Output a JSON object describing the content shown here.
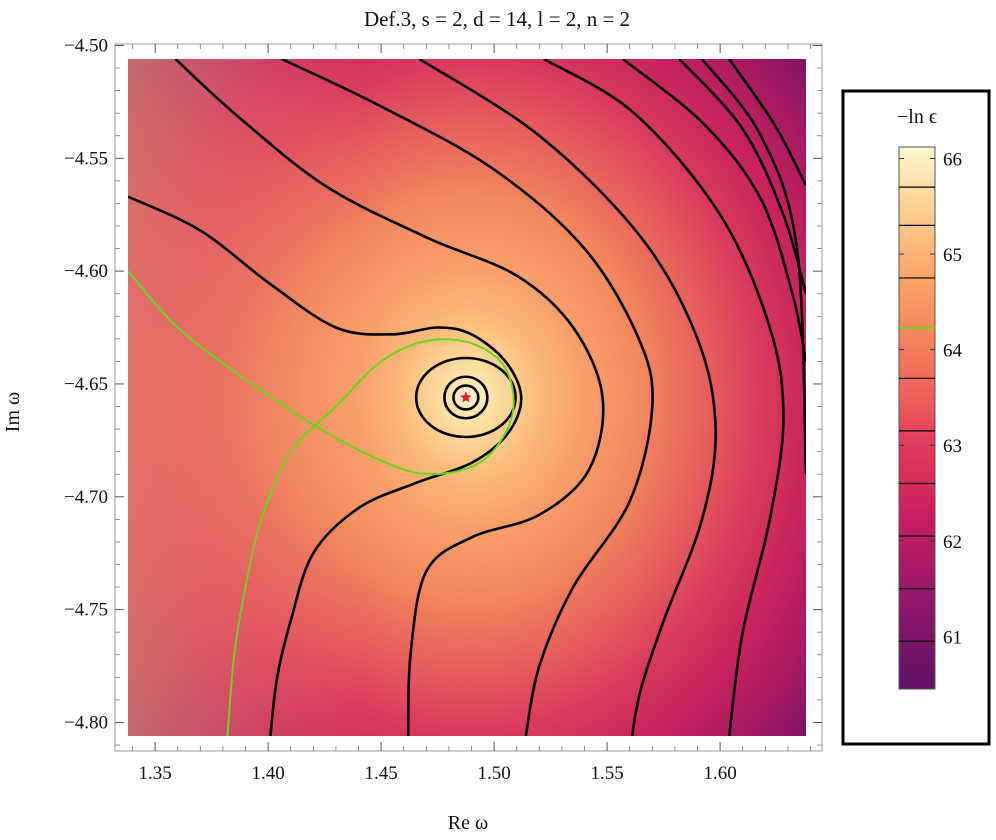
{
  "chart_data": {
    "type": "heatmap",
    "title": "Def.3, s = 2, d = 14, l = 2, n = 2",
    "xlabel": "Re ω",
    "ylabel": "Im ω",
    "xlim": [
      1.338,
      1.638
    ],
    "ylim": [
      -4.806,
      -4.506
    ],
    "frame_xlim": [
      1.332,
      1.645
    ],
    "frame_ylim": [
      -4.812,
      -4.5
    ],
    "x_ticks": [
      1.35,
      1.4,
      1.45,
      1.5,
      1.55,
      1.6
    ],
    "x_tick_labels": [
      "1.35",
      "1.40",
      "1.45",
      "1.50",
      "1.55",
      "1.60"
    ],
    "y_ticks": [
      -4.5,
      -4.55,
      -4.6,
      -4.65,
      -4.7,
      -4.75,
      -4.8
    ],
    "y_tick_labels": [
      "−4.50",
      "−4.55",
      "−4.60",
      "−4.65",
      "−4.70",
      "−4.75",
      "−4.80"
    ],
    "colormap": [
      "#5e1266",
      "#b81a5e",
      "#e6325c",
      "#f6705a",
      "#fbaa68",
      "#fde0a0",
      "#fef8cc"
    ],
    "contour_color": "#000000",
    "highlight_contour_color": "#6cd421",
    "highlight_level": 64.23,
    "minimum_marker": {
      "x": 1.4875,
      "y": -4.656,
      "color": "#ee1c1c",
      "shape": "star"
    },
    "contours": [
      {
        "type": "line",
        "points": [
          [
            1.338,
            -4.567
          ],
          [
            1.37,
            -4.582
          ],
          [
            1.4,
            -4.605
          ],
          [
            1.43,
            -4.625
          ],
          [
            1.455,
            -4.628
          ],
          [
            1.475,
            -4.625
          ],
          [
            1.49,
            -4.628
          ],
          [
            1.505,
            -4.64
          ],
          [
            1.512,
            -4.656
          ],
          [
            1.506,
            -4.672
          ],
          [
            1.49,
            -4.685
          ],
          [
            1.465,
            -4.694
          ],
          [
            1.44,
            -4.705
          ],
          [
            1.42,
            -4.725
          ],
          [
            1.41,
            -4.755
          ],
          [
            1.404,
            -4.78
          ],
          [
            1.401,
            -4.806
          ]
        ]
      },
      {
        "type": "line",
        "points": [
          [
            1.359,
            -4.506
          ],
          [
            1.385,
            -4.53
          ],
          [
            1.425,
            -4.562
          ],
          [
            1.47,
            -4.585
          ],
          [
            1.51,
            -4.602
          ],
          [
            1.535,
            -4.625
          ],
          [
            1.548,
            -4.656
          ],
          [
            1.542,
            -4.688
          ],
          [
            1.52,
            -4.708
          ],
          [
            1.49,
            -4.718
          ],
          [
            1.47,
            -4.733
          ],
          [
            1.463,
            -4.77
          ],
          [
            1.462,
            -4.806
          ]
        ]
      },
      {
        "type": "line",
        "points": [
          [
            1.406,
            -4.506
          ],
          [
            1.45,
            -4.527
          ],
          [
            1.5,
            -4.555
          ],
          [
            1.54,
            -4.59
          ],
          [
            1.564,
            -4.63
          ],
          [
            1.57,
            -4.66
          ],
          [
            1.56,
            -4.702
          ],
          [
            1.535,
            -4.74
          ],
          [
            1.52,
            -4.775
          ],
          [
            1.514,
            -4.806
          ]
        ]
      },
      {
        "type": "line",
        "points": [
          [
            1.467,
            -4.506
          ],
          [
            1.52,
            -4.54
          ],
          [
            1.565,
            -4.585
          ],
          [
            1.59,
            -4.63
          ],
          [
            1.598,
            -4.67
          ],
          [
            1.592,
            -4.71
          ],
          [
            1.575,
            -4.755
          ],
          [
            1.565,
            -4.785
          ],
          [
            1.561,
            -4.806
          ]
        ]
      },
      {
        "type": "line",
        "points": [
          [
            1.522,
            -4.506
          ],
          [
            1.562,
            -4.53
          ],
          [
            1.6,
            -4.575
          ],
          [
            1.622,
            -4.625
          ],
          [
            1.628,
            -4.665
          ],
          [
            1.622,
            -4.71
          ],
          [
            1.61,
            -4.76
          ],
          [
            1.604,
            -4.806
          ]
        ]
      },
      {
        "type": "line",
        "points": [
          [
            1.557,
            -4.506
          ],
          [
            1.593,
            -4.535
          ],
          [
            1.618,
            -4.568
          ],
          [
            1.632,
            -4.61
          ],
          [
            1.638,
            -4.64
          ]
        ]
      },
      {
        "type": "line",
        "points": [
          [
            1.582,
            -4.506
          ],
          [
            1.61,
            -4.537
          ],
          [
            1.628,
            -4.575
          ],
          [
            1.638,
            -4.61
          ]
        ]
      },
      {
        "type": "line",
        "points": [
          [
            1.604,
            -4.506
          ],
          [
            1.624,
            -4.535
          ],
          [
            1.638,
            -4.562
          ]
        ]
      },
      {
        "type": "line",
        "points": [
          [
            1.592,
            -4.506
          ],
          [
            1.618,
            -4.54
          ],
          [
            1.634,
            -4.59
          ],
          [
            1.638,
            -4.69
          ]
        ]
      },
      {
        "type": "ellipse",
        "cx": 1.4875,
        "cy": -4.656,
        "rx": 0.022,
        "ry": 0.0175
      },
      {
        "type": "ellipse",
        "cx": 1.4875,
        "cy": -4.656,
        "rx": 0.0095,
        "ry": 0.0092
      },
      {
        "type": "ellipse",
        "cx": 1.4875,
        "cy": -4.656,
        "rx": 0.0055,
        "ry": 0.0053
      }
    ],
    "highlight_contour": [
      {
        "type": "line",
        "points": [
          [
            1.338,
            -4.6
          ],
          [
            1.36,
            -4.625
          ],
          [
            1.39,
            -4.648
          ],
          [
            1.42,
            -4.668
          ],
          [
            1.45,
            -4.684
          ],
          [
            1.472,
            -4.69
          ],
          [
            1.495,
            -4.684
          ],
          [
            1.508,
            -4.664
          ],
          [
            1.505,
            -4.643
          ],
          [
            1.49,
            -4.632
          ],
          [
            1.47,
            -4.631
          ],
          [
            1.45,
            -4.64
          ],
          [
            1.43,
            -4.66
          ],
          [
            1.41,
            -4.68
          ],
          [
            1.397,
            -4.71
          ],
          [
            1.39,
            -4.74
          ],
          [
            1.385,
            -4.77
          ],
          [
            1.382,
            -4.806
          ]
        ]
      }
    ],
    "legend": {
      "title": "−ln ϵ",
      "position": "right",
      "range": [
        60.45,
        66.12
      ],
      "ticks": [
        66,
        65,
        64,
        63,
        62,
        61
      ],
      "tick_labels": [
        "66",
        "65",
        "64",
        "63",
        "62",
        "61"
      ],
      "contour_levels": [
        65.7,
        65.3,
        64.75,
        64.23,
        63.7,
        63.15,
        62.6,
        62.05,
        61.5,
        60.95
      ]
    }
  }
}
